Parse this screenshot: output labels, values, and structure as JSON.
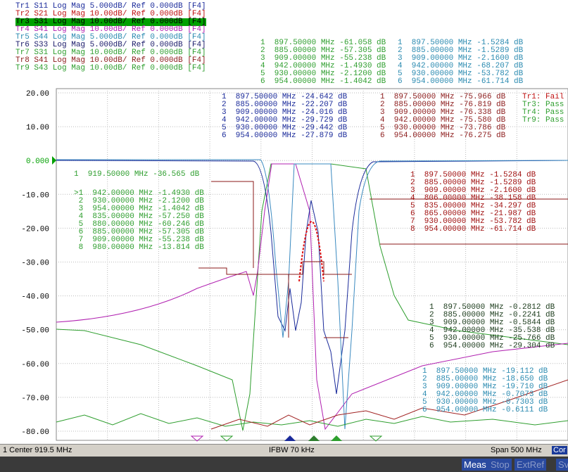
{
  "trace_list": [
    "Tr1 S11 Log Mag 5.000dB/ Ref 0.000dB [F4]",
    "Tr2 S21 Log Mag 10.00dB/ Ref 0.000dB [F4]",
    "Tr3 S31 Log Mag 10.00dB/ Ref 0.000dB [F4]",
    "Tr4 S41 Log Mag 10.00dB/ Ref 0.000dB [F4]",
    "Tr5 S44 Log Mag 5.000dB/ Ref 0.000dB [F4]",
    "Tr6 S33 Log Mag 5.000dB/ Ref 0.000dB [F4]",
    "Tr7 S31 Log Mag 10.00dB/ Ref 0.000dB [F4]",
    "Tr8 S41 Log Mag 10.00dB/ Ref 0.000dB [F4]",
    "Tr9 S43 Log Mag 10.00dB/ Ref 0.000dB [F4]"
  ],
  "y_axis_labels": [
    "20.00",
    "10.00",
    "0.000",
    "-10.00",
    "-20.00",
    "-30.00",
    "-40.00",
    "-50.00",
    "-60.00",
    "-70.00",
    "-80.00"
  ],
  "marker_tables": [
    {
      "lines": [
        "1  897.50000 MHz -61.058 dB",
        "2  885.00000 MHz -57.305 dB",
        "3  909.00000 MHz -55.238 dB",
        "4  942.00000 MHz -1.4930 dB",
        "5  930.00000 MHz -2.1200 dB",
        "6  954.00000 MHz -1.4042 dB"
      ]
    },
    {
      "lines": [
        "1  897.50000 MHz -1.5284 dB",
        "2  885.00000 MHz -1.5289 dB",
        "3  909.00000 MHz -2.1600 dB",
        "4  942.00000 MHz -68.207 dB",
        "5  930.00000 MHz -53.782 dB",
        "6  954.00000 MHz -61.714 dB"
      ]
    },
    {
      "lines": [
        "1  897.50000 MHz -24.642 dB",
        "2  885.00000 MHz -22.207 dB",
        "3  909.00000 MHz -24.016 dB",
        "4  942.00000 MHz -29.729 dB",
        "5  930.00000 MHz -29.442 dB",
        "6  954.00000 MHz -27.879 dB"
      ]
    },
    {
      "lines": [
        "1  897.50000 MHz -75.966 dB",
        "2  885.00000 MHz -76.819 dB",
        "3  909.00000 MHz -76.338 dB",
        "4  942.00000 MHz -75.580 dB",
        "5  930.00000 MHz -73.786 dB",
        "6  954.00000 MHz -76.275 dB"
      ]
    },
    {
      "lines": [
        "1  919.50000 MHz -36.565 dB"
      ]
    },
    {
      "lines": [
        ">1  942.00000 MHz -1.4930 dB",
        " 2  930.00000 MHz -2.1200 dB",
        " 3  954.00000 MHz -1.4042 dB",
        " 4  835.00000 MHz -57.250 dB",
        " 5  880.00000 MHz -60.246 dB",
        " 6  885.00000 MHz -57.305 dB",
        " 7  909.00000 MHz -55.238 dB",
        " 8  980.00000 MHz -13.814 dB"
      ]
    },
    {
      "lines": [
        "1  897.50000 MHz -1.5284 dB",
        "2  885.00000 MHz -1.5289 dB",
        "3  909.00000 MHz -2.1600 dB",
        "4  806.00000 MHz -38.158 dB",
        "5  835.00000 MHz -34.297 dB",
        "6  865.00000 MHz -21.987 dB",
        "7  930.00000 MHz -53.782 dB",
        "8  954.00000 MHz -61.714 dB"
      ]
    },
    {
      "lines": [
        "1  897.50000 MHz -0.2812 dB",
        "2  885.00000 MHz -0.2241 dB",
        "3  909.00000 MHz -0.5844 dB",
        "4  942.00000 MHz -35.538 dB",
        "5  930.00000 MHz -25.766 dB",
        "6  954.00000 MHz -29.304 dB"
      ]
    },
    {
      "lines": [
        "1  897.50000 MHz -19.112 dB",
        "2  885.00000 MHz -18.650 dB",
        "3  909.00000 MHz -19.710 dB",
        "4  942.00000 MHz -0.7073 dB",
        "5  930.00000 MHz -0.7303 dB",
        "6  954.00000 MHz -0.6111 dB"
      ]
    }
  ],
  "limit_results": [
    "Tr1: Fail",
    "Tr3: Pass",
    "Tr4: Pass",
    "Tr9: Pass"
  ],
  "status_bar": {
    "center": "1 Center 919.5 MHz",
    "ifbw": "IFBW 70 kHz",
    "span": "Span 500 MHz",
    "cor": "Cor"
  },
  "bottom_bar": [
    "Meas",
    "Stop",
    "ExtRef",
    "Sv"
  ]
}
